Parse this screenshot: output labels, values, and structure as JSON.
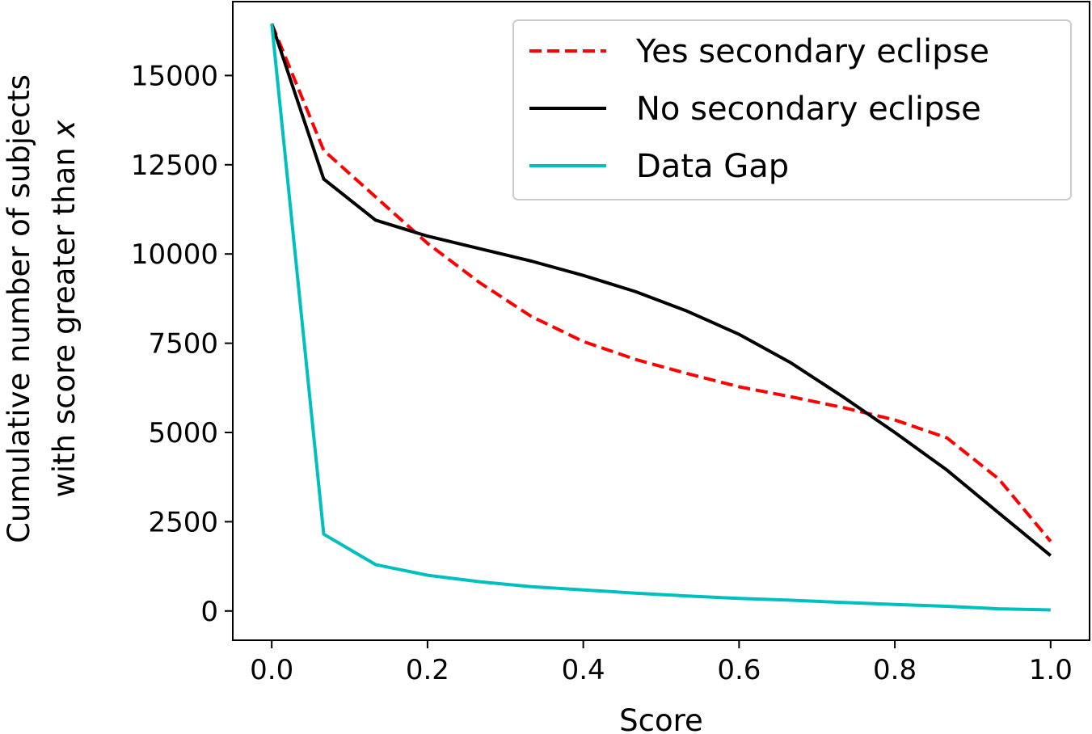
{
  "chart_data": {
    "type": "line",
    "title": "",
    "xlabel": "Score",
    "ylabel": [
      "Cumulative number of subjects",
      "with score greater than x"
    ],
    "ylabel_italic_word": "x",
    "xlim": [
      -0.05,
      1.05
    ],
    "ylim": [
      -820,
      17070
    ],
    "xticks": [
      0.0,
      0.2,
      0.4,
      0.6,
      0.8,
      1.0
    ],
    "xtick_labels": [
      "0.0",
      "0.2",
      "0.4",
      "0.6",
      "0.8",
      "1.0"
    ],
    "yticks": [
      0,
      2500,
      5000,
      7500,
      10000,
      12500,
      15000
    ],
    "ytick_labels": [
      "0",
      "2500",
      "5000",
      "7500",
      "10000",
      "12500",
      "15000"
    ],
    "grid": false,
    "legend_position": "top-right",
    "x": [
      0.0,
      0.0667,
      0.1333,
      0.2,
      0.2667,
      0.3333,
      0.4,
      0.4667,
      0.5333,
      0.6,
      0.6667,
      0.7333,
      0.8,
      0.8667,
      0.9333,
      1.0
    ],
    "series": [
      {
        "name": "Yes secondary eclipse",
        "color": "#ff0000",
        "style": "dashed",
        "values": [
          16450,
          12900,
          11600,
          10300,
          9200,
          8250,
          7550,
          7050,
          6650,
          6280,
          6000,
          5700,
          5350,
          4850,
          3700,
          1950
        ]
      },
      {
        "name": "No secondary eclipse",
        "color": "#000000",
        "style": "solid",
        "values": [
          16450,
          12100,
          10950,
          10500,
          10150,
          9800,
          9400,
          8950,
          8400,
          7750,
          6950,
          6000,
          5000,
          3950,
          2750,
          1550
        ]
      },
      {
        "name": "Data Gap",
        "color": "#00bfbf",
        "style": "solid",
        "values": [
          16450,
          2150,
          1300,
          1000,
          820,
          680,
          590,
          500,
          420,
          350,
          300,
          240,
          180,
          130,
          60,
          30
        ]
      }
    ]
  }
}
